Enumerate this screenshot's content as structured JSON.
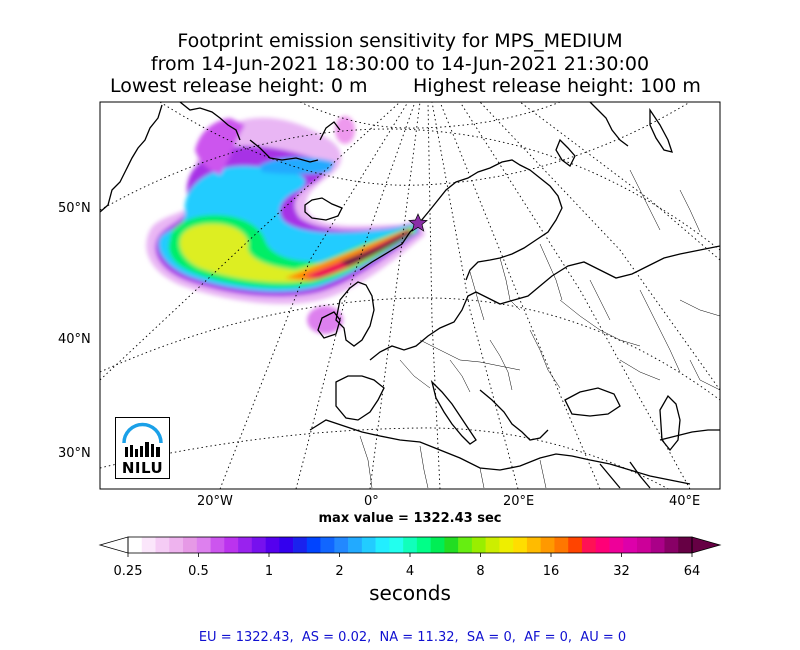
{
  "title": {
    "line1": "Footprint emission sensitivity for MPS_MEDIUM",
    "line2": "from 14-Jun-2021 18:30:00 to 14-Jun-2021 21:30:00",
    "lowest": "Lowest release height: 0 m",
    "highest": "Highest release height: 100 m"
  },
  "axes": {
    "lat_labels": [
      "50°N",
      "40°N",
      "30°N"
    ],
    "lon_labels": [
      "20°W",
      "0°",
      "20°E",
      "40°E"
    ]
  },
  "max_value_text": "max value = 1322.43 sec",
  "logo": {
    "text": "NILU",
    "icon": "nilu-logo-icon"
  },
  "chart_data": {
    "type": "heatmap",
    "title": "Footprint emission sensitivity for MPS_MEDIUM",
    "colorbar": {
      "scale": "log",
      "ticks": [
        "0.25",
        "0.5",
        "1",
        "2",
        "4",
        "8",
        "16",
        "32",
        "64"
      ],
      "label": "seconds",
      "range": [
        0.25,
        64
      ],
      "extend": "both"
    },
    "max_value": 1322.43,
    "units": "sec",
    "release_site_marker": "star",
    "projection": "polar stereographic",
    "regional_totals": {
      "EU": 1322.43,
      "AS": 0.02,
      "NA": 11.32,
      "SA": 0,
      "AF": 0,
      "AU": 0
    }
  },
  "stats_text": "EU = 1322.43,  AS = 0.02,  NA = 11.32,  SA = 0,  AF = 0,  AU = 0",
  "colors": {
    "stats": "#1010d0",
    "colormap": [
      "#ffffff",
      "#fbe6fb",
      "#f5ccf5",
      "#eeb3ee",
      "#e699e6",
      "#dd80ee",
      "#cc55ee",
      "#bb33ee",
      "#9922ee",
      "#7711ee",
      "#5500ee",
      "#3300ee",
      "#1a22ee",
      "#0044ff",
      "#1166ff",
      "#2288ff",
      "#22aaff",
      "#22ccff",
      "#22eeff",
      "#22ffee",
      "#11ffbb",
      "#00ff88",
      "#00ee55",
      "#22dd22",
      "#66ee11",
      "#99ee00",
      "#ccee00",
      "#eeee00",
      "#ffdd00",
      "#ffbb00",
      "#ff9900",
      "#ff7700",
      "#ff4400",
      "#ff1155",
      "#ff0077",
      "#ee0099",
      "#dd00aa",
      "#cc0099",
      "#aa0088",
      "#880066",
      "#660044"
    ]
  }
}
